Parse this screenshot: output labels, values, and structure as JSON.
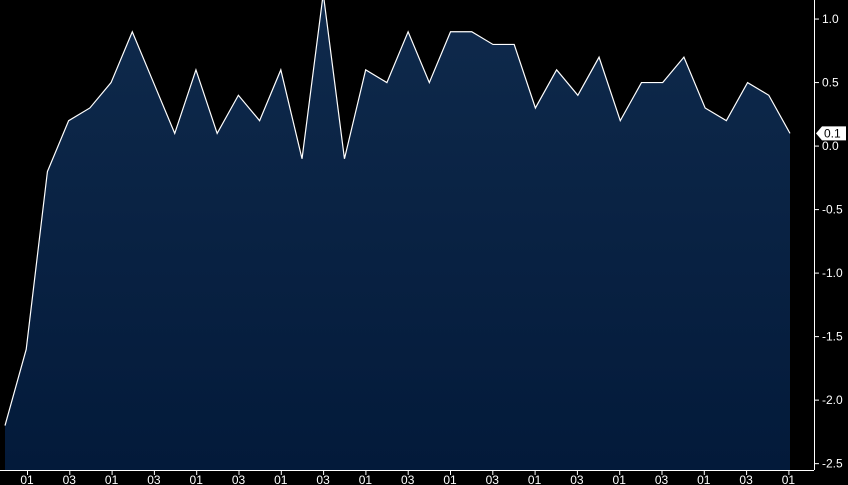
{
  "chart_data": {
    "type": "area",
    "title": "",
    "xlabel": "",
    "ylabel": "",
    "grid": true,
    "ylim": [
      -2.55,
      1.15
    ],
    "y_ticks": [
      "1.0",
      "0.5",
      "0.0",
      "-0.5",
      "-1.0",
      "-1.5",
      "-2.0",
      "-2.5"
    ],
    "y_tick_values": [
      1.0,
      0.5,
      0.0,
      -0.5,
      -1.0,
      -1.5,
      -2.0,
      -2.5
    ],
    "x_tick_labels": [
      "01",
      "03",
      "01",
      "03",
      "01",
      "03",
      "01",
      "03",
      "01",
      "03",
      "01",
      "03",
      "01",
      "03",
      "01",
      "03",
      "01",
      "03",
      "01"
    ],
    "x": [
      0,
      1,
      2,
      3,
      4,
      5,
      6,
      7,
      8,
      9,
      10,
      11,
      12,
      13,
      14,
      15,
      16,
      17,
      18,
      19,
      20,
      21,
      22,
      23,
      24,
      25,
      26,
      27,
      28,
      29,
      30,
      31,
      32,
      33,
      34,
      35,
      36,
      37
    ],
    "series": [
      {
        "values": [
          -2.2,
          -1.6,
          -0.2,
          0.2,
          0.3,
          0.5,
          0.9,
          0.5,
          0.1,
          0.6,
          0.1,
          0.4,
          0.2,
          0.6,
          -0.1,
          1.2,
          -0.1,
          0.6,
          0.5,
          0.9,
          0.5,
          0.9,
          0.9,
          0.8,
          0.8,
          0.3,
          0.6,
          0.4,
          0.7,
          0.2,
          0.5,
          0.5,
          0.7,
          0.3,
          0.2,
          0.5,
          0.4,
          0.1
        ]
      }
    ],
    "last_value_label": "0.1",
    "colors": {
      "background": "#000000",
      "fill_top": "#0f2a4c",
      "fill_bottom": "#031a3a",
      "line": "#ffffff",
      "grid": "#6d6d6d",
      "text": "#ffffff"
    }
  }
}
